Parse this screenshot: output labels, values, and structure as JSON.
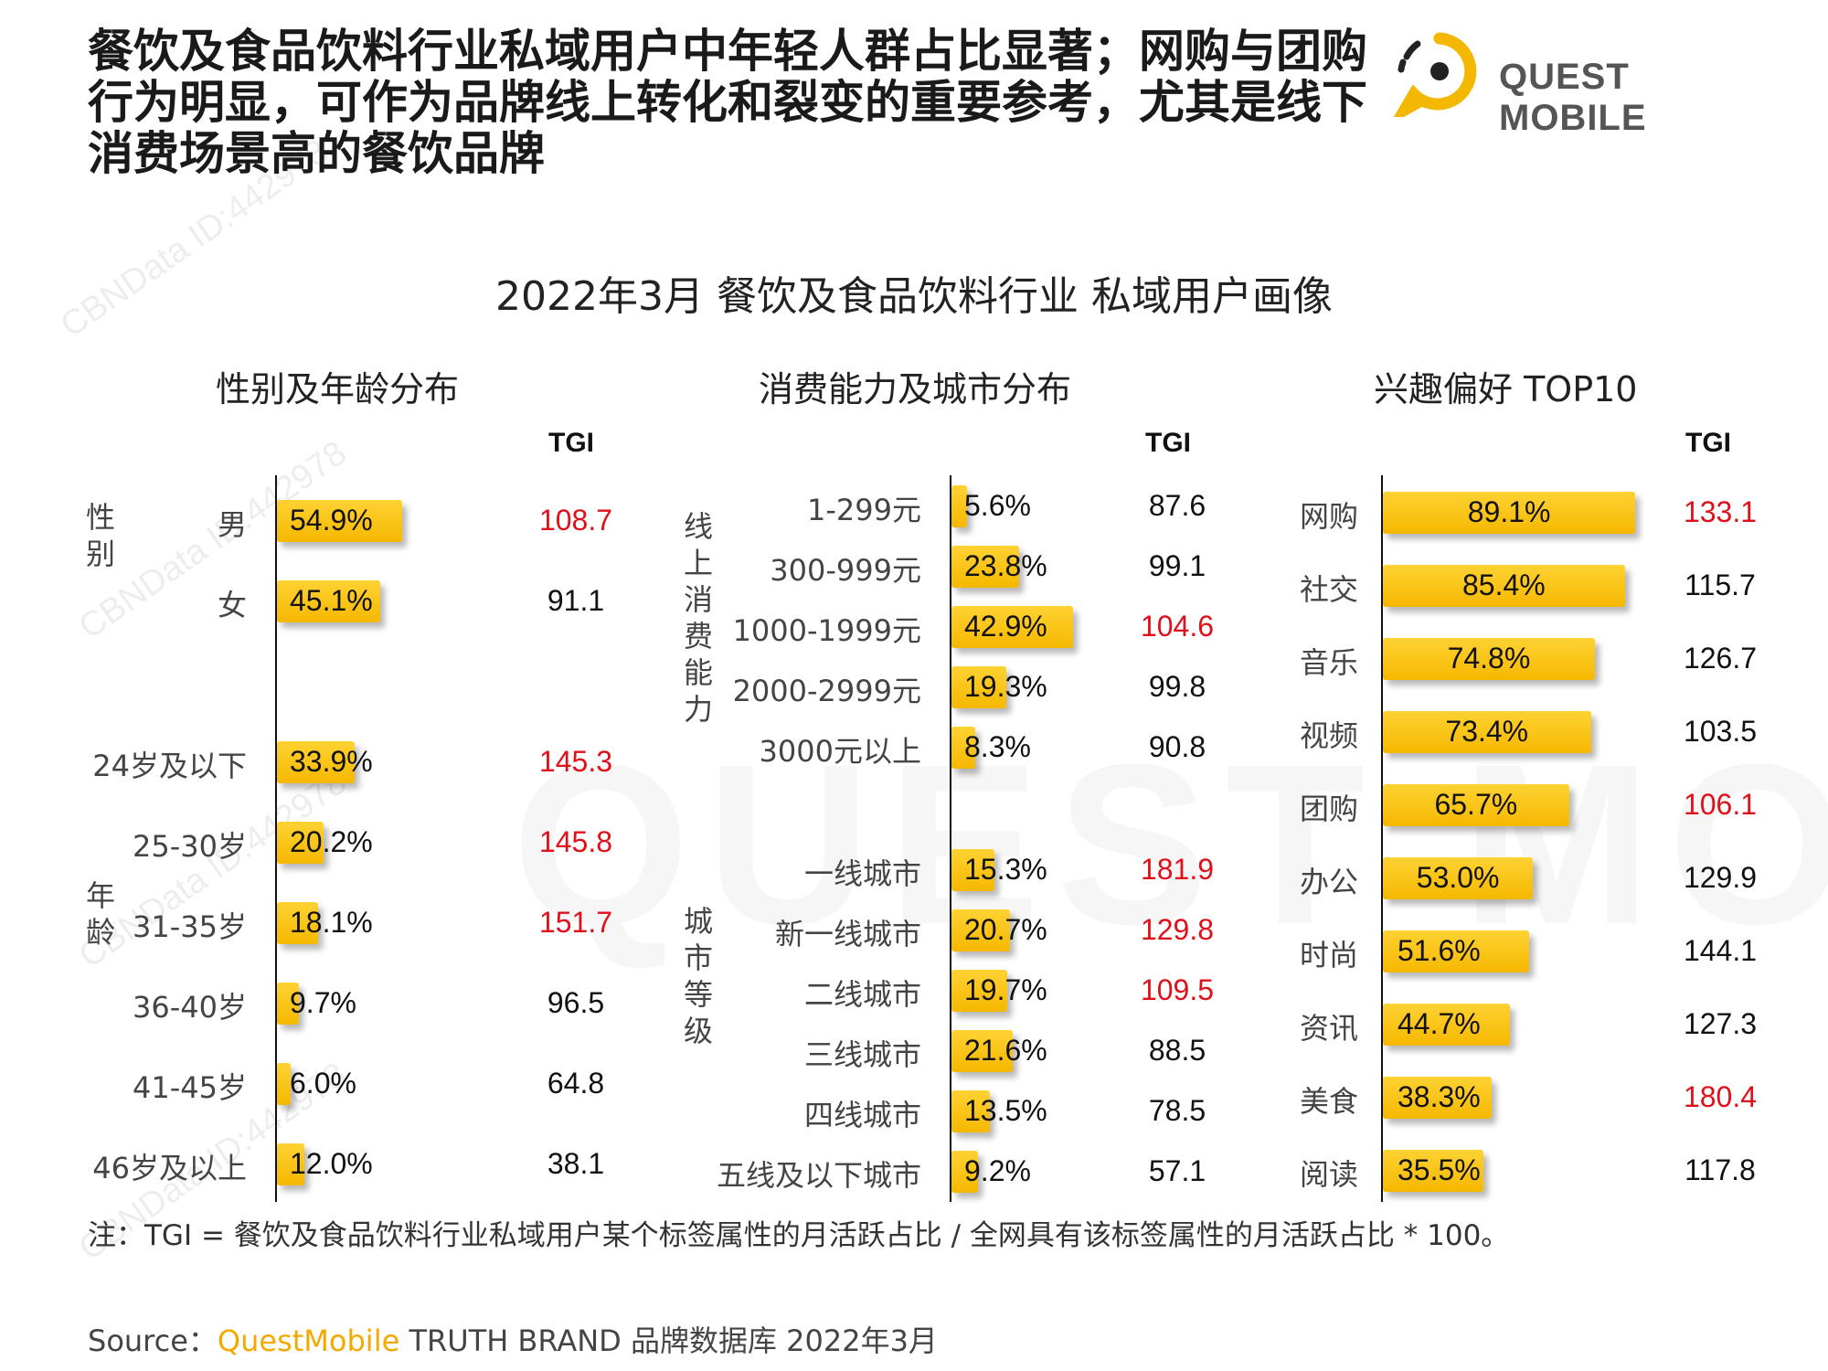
{
  "headline": {
    "line1": "餐饮及食品饮料行业私域用户中年轻人群占比显著；网购与团购",
    "line2": "行为明显，可作为品牌线上转化和裂变的重要参考，尤其是线下",
    "line3": "消费场景高的餐饮品牌"
  },
  "logo": {
    "text": "QUEST MOBILE",
    "color": "#f5b800"
  },
  "watermark": {
    "text": "CBNData ID:442978",
    "big_text": "QUEST MOBILE"
  },
  "colors": {
    "bar": "#f5b800",
    "tgi_high": "#e0101a",
    "tgi_normal": "#111111",
    "source_brand": "#f2a900"
  },
  "chart_title": "2022年3月 餐饮及食品饮料行业 私域用户画像",
  "tgi_header": "TGI",
  "chart_data": [
    {
      "type": "bar",
      "title": "性别及年龄分布",
      "groups": [
        {
          "label": "性别",
          "categories": [
            "男",
            "女"
          ]
        },
        {
          "label": "年龄",
          "categories": [
            "24岁及以下",
            "25-30岁",
            "31-35岁",
            "36-40岁",
            "41-45岁",
            "46岁及以上"
          ]
        }
      ],
      "categories": [
        "男",
        "女",
        "24岁及以下",
        "25-30岁",
        "31-35岁",
        "36-40岁",
        "41-45岁",
        "46岁及以上"
      ],
      "values": [
        54.9,
        45.1,
        33.9,
        20.2,
        18.1,
        9.7,
        6.0,
        12.0
      ],
      "value_labels": [
        "54.9%",
        "45.1%",
        "33.9%",
        "20.2%",
        "18.1%",
        "9.7%",
        "6.0%",
        "12.0%"
      ],
      "tgi": [
        "108.7",
        "91.1",
        "145.3",
        "145.8",
        "151.7",
        "96.5",
        "64.8",
        "38.1"
      ],
      "tgi_highlight": [
        true,
        false,
        true,
        true,
        true,
        false,
        false,
        false
      ]
    },
    {
      "type": "bar",
      "title": "消费能力及城市分布",
      "groups": [
        {
          "label": "线上消费能力",
          "categories": [
            "1-299元",
            "300-999元",
            "1000-1999元",
            "2000-2999元",
            "3000元以上"
          ]
        },
        {
          "label": "城市等级",
          "categories": [
            "一线城市",
            "新一线城市",
            "二线城市",
            "三线城市",
            "四线城市",
            "五线及以下城市"
          ]
        }
      ],
      "categories": [
        "1-299元",
        "300-999元",
        "1000-1999元",
        "2000-2999元",
        "3000元以上",
        "一线城市",
        "新一线城市",
        "二线城市",
        "三线城市",
        "四线城市",
        "五线及以下城市"
      ],
      "values": [
        5.6,
        23.8,
        42.9,
        19.3,
        8.3,
        15.3,
        20.7,
        19.7,
        21.6,
        13.5,
        9.2
      ],
      "value_labels": [
        "5.6%",
        "23.8%",
        "42.9%",
        "19.3%",
        "8.3%",
        "15.3%",
        "20.7%",
        "19.7%",
        "21.6%",
        "13.5%",
        "9.2%"
      ],
      "tgi": [
        "87.6",
        "99.1",
        "104.6",
        "99.8",
        "90.8",
        "181.9",
        "129.8",
        "109.5",
        "88.5",
        "78.5",
        "57.1"
      ],
      "tgi_highlight": [
        false,
        false,
        true,
        false,
        false,
        true,
        true,
        true,
        false,
        false,
        false
      ]
    },
    {
      "type": "bar",
      "title": "兴趣偏好 TOP10",
      "categories": [
        "网购",
        "社交",
        "音乐",
        "视频",
        "团购",
        "办公",
        "时尚",
        "资讯",
        "美食",
        "阅读"
      ],
      "values": [
        89.1,
        85.4,
        74.8,
        73.4,
        65.7,
        53.0,
        51.6,
        44.7,
        38.3,
        35.5
      ],
      "value_labels": [
        "89.1%",
        "85.4%",
        "74.8%",
        "73.4%",
        "65.7%",
        "53.0%",
        "51.6%",
        "44.7%",
        "38.3%",
        "35.5%"
      ],
      "tgi": [
        "133.1",
        "115.7",
        "126.7",
        "103.5",
        "106.1",
        "129.9",
        "144.1",
        "127.3",
        "180.4",
        "117.8"
      ],
      "tgi_highlight": [
        true,
        false,
        false,
        false,
        true,
        false,
        false,
        false,
        true,
        false
      ]
    }
  ],
  "note": "注：TGI = 餐饮及食品饮料行业私域用户某个标签属性的月活跃占比 / 全网具有该标签属性的月活跃占比 * 100。",
  "source": {
    "prefix": "Source：",
    "brand": "QuestMobile",
    "rest": " TRUTH BRAND 品牌数据库 2022年3月"
  }
}
